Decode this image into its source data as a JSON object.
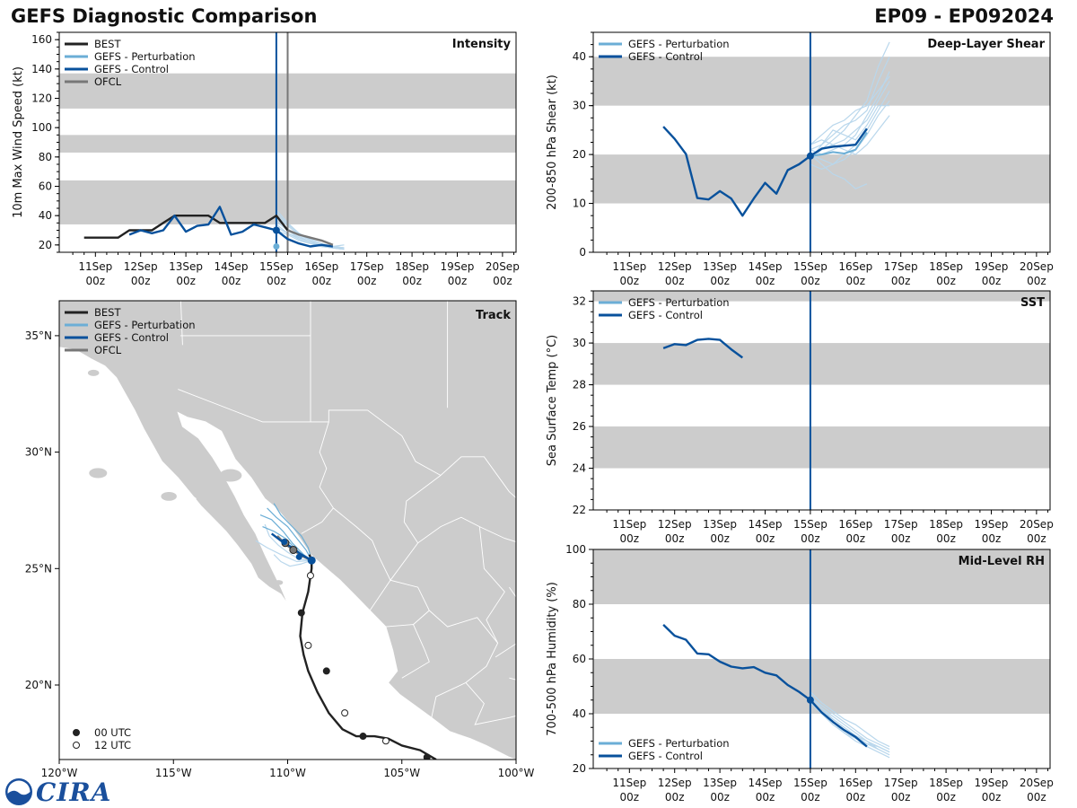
{
  "header": {
    "title_left": "GEFS Diagnostic Comparison",
    "title_right": "EP09 - EP092024"
  },
  "logo": {
    "text": "CIRA"
  },
  "colors": {
    "best": "#222222",
    "pert": "#6baed6",
    "pert_faint": "#b9d7ec",
    "control": "#08519c",
    "ofcl": "#777777",
    "band": "#cccccc",
    "land": "#cccccc"
  },
  "time_axis": {
    "ticks": [
      "11Sep\n00z",
      "12Sep\n00z",
      "13Sep\n00z",
      "14Sep\n00z",
      "15Sep\n00z",
      "16Sep\n00z",
      "17Sep\n00z",
      "18Sep\n00z",
      "19Sep\n00z",
      "20Sep\n00z"
    ],
    "tick_days": [
      1,
      2,
      3,
      4,
      5,
      6,
      7,
      8,
      9,
      10
    ],
    "range": [
      0.2,
      10.3
    ],
    "init_day": 5.0
  },
  "chart_data": [
    {
      "id": "intensity",
      "type": "line",
      "title": "Intensity",
      "ylabel": "10m Max Wind Speed (kt)",
      "ylim": [
        15,
        165
      ],
      "yticks": [
        20,
        40,
        60,
        80,
        100,
        120,
        140,
        160
      ],
      "bands": [
        [
          34,
          64
        ],
        [
          83,
          95
        ],
        [
          113,
          137
        ]
      ],
      "legend": [
        "BEST",
        "GEFS - Perturbation",
        "GEFS - Control",
        "OFCL"
      ],
      "vlines": [
        {
          "x": 5.0,
          "color": "control"
        },
        {
          "x": 5.25,
          "color": "ofcl"
        }
      ],
      "series": [
        {
          "name": "BEST",
          "color": "best",
          "x": [
            0.75,
            1.0,
            1.25,
            1.5,
            1.75,
            2.0,
            2.25,
            2.5,
            2.75,
            3.0,
            3.25,
            3.5,
            3.75,
            4.0,
            4.25,
            4.5,
            4.75,
            5.0,
            5.25
          ],
          "y": [
            25,
            25,
            25,
            25,
            30,
            30,
            30,
            35,
            40,
            40,
            40,
            40,
            35,
            35,
            35,
            35,
            35,
            40,
            30
          ]
        },
        {
          "name": "GEFS - Control",
          "color": "control",
          "x": [
            1.75,
            2.0,
            2.25,
            2.5,
            2.75,
            3.0,
            3.25,
            3.5,
            3.75,
            4.0,
            4.25,
            4.5,
            4.75,
            5.0,
            5.25,
            5.5,
            5.75,
            6.0,
            6.25
          ],
          "y": [
            27,
            30,
            28,
            30,
            40,
            29,
            33,
            34,
            46,
            27,
            29,
            34,
            32,
            30,
            24,
            21,
            19,
            20,
            19
          ]
        },
        {
          "name": "OFCL",
          "color": "ofcl",
          "x": [
            5.25,
            5.5,
            5.75,
            6.0,
            6.25
          ],
          "y": [
            30,
            27,
            25,
            23,
            20
          ]
        }
      ],
      "ensemble": {
        "x": [
          5.0,
          5.25,
          5.5,
          5.75,
          6.0,
          6.25,
          6.5
        ],
        "members": [
          [
            40,
            33,
            27,
            23,
            20,
            18,
            17
          ],
          [
            38,
            31,
            26,
            22,
            20,
            19,
            18
          ],
          [
            36,
            30,
            25,
            22,
            19,
            18,
            17
          ],
          [
            42,
            34,
            28,
            24,
            21,
            19,
            18
          ],
          [
            34,
            28,
            24,
            21,
            19,
            18,
            17
          ],
          [
            30,
            27,
            23,
            21,
            19,
            18,
            18
          ],
          [
            44,
            35,
            28,
            23,
            20,
            19,
            20
          ],
          [
            32,
            28,
            25,
            22,
            20,
            19,
            18
          ]
        ],
        "pert_markers": [
          {
            "x": 5.0,
            "y": 19
          }
        ]
      }
    },
    {
      "id": "shear",
      "type": "line",
      "title": "Deep-Layer Shear",
      "ylabel": "200-850 hPa Shear (kt)",
      "ylim": [
        0,
        45
      ],
      "yticks": [
        0,
        10,
        20,
        30,
        40
      ],
      "bands": [
        [
          10,
          20
        ],
        [
          30,
          40
        ]
      ],
      "legend": [
        "GEFS - Perturbation",
        "GEFS - Control"
      ],
      "vlines": [
        {
          "x": 5.0,
          "color": "control"
        }
      ],
      "series": [
        {
          "name": "GEFS - Control",
          "color": "control",
          "x": [
            1.75,
            2.0,
            2.25,
            2.5,
            2.75,
            3.0,
            3.25,
            3.5,
            3.75,
            4.0,
            4.25,
            4.5,
            4.75,
            5.0,
            5.25,
            5.5,
            5.75,
            6.0,
            6.25
          ],
          "y": [
            25.7,
            23.2,
            20.1,
            11.1,
            10.8,
            12.5,
            11.0,
            7.5,
            11.0,
            14.2,
            12.0,
            16.8,
            18.0,
            19.7,
            21.2,
            21.6,
            21.8,
            22.0,
            25.3
          ]
        },
        {
          "name": "GEFS - Perturbation",
          "color": "pert",
          "x": [
            5.0,
            5.25,
            5.5,
            5.75,
            6.0,
            6.25
          ],
          "y": [
            19.7,
            20.0,
            20.5,
            20.2,
            21.0,
            24.5
          ]
        }
      ],
      "ensemble": {
        "x": [
          5.0,
          5.25,
          5.5,
          5.75,
          6.0,
          6.25,
          6.5,
          6.75
        ],
        "members": [
          [
            20,
            18,
            16,
            15,
            13,
            14,
            null,
            null
          ],
          [
            21,
            22,
            24,
            26,
            27,
            29,
            35,
            40
          ],
          [
            19,
            21,
            23,
            25,
            28,
            31,
            38,
            43
          ],
          [
            20,
            19,
            18,
            19,
            21,
            24,
            28,
            31
          ],
          [
            22,
            23,
            22,
            23,
            25,
            27,
            31,
            35
          ],
          [
            18,
            17,
            18,
            20,
            22,
            25,
            29,
            33
          ],
          [
            21,
            20,
            21,
            22,
            24,
            28,
            32,
            37
          ],
          [
            19,
            22,
            25,
            24,
            23,
            26,
            30,
            30
          ],
          [
            20,
            21,
            22,
            21,
            20,
            22,
            25,
            28
          ],
          [
            22,
            24,
            26,
            27,
            29,
            30,
            33,
            36
          ]
        ],
        "pert_markers": []
      }
    },
    {
      "id": "sst",
      "type": "line",
      "title": "SST",
      "ylabel": "Sea Surface Temp (°C)",
      "ylim": [
        22,
        32.5
      ],
      "yticks": [
        22,
        24,
        26,
        28,
        30,
        32
      ],
      "bands": [
        [
          24,
          26
        ],
        [
          28,
          30
        ],
        [
          32,
          32.5
        ]
      ],
      "legend": [
        "GEFS - Perturbation",
        "GEFS - Control"
      ],
      "vlines": [
        {
          "x": 5.0,
          "color": "control"
        }
      ],
      "series": [
        {
          "name": "GEFS - Control",
          "color": "control",
          "x": [
            1.75,
            2.0,
            2.25,
            2.5,
            2.75,
            3.0,
            3.25,
            3.5
          ],
          "y": [
            29.75,
            29.95,
            29.9,
            30.15,
            30.2,
            30.15,
            29.7,
            29.3
          ]
        }
      ],
      "ensemble": {
        "x": [],
        "members": [],
        "pert_markers": []
      }
    },
    {
      "id": "rh",
      "type": "line",
      "title": "Mid-Level RH",
      "ylabel": "700-500 hPa Humidity (%)",
      "ylim": [
        20,
        100
      ],
      "yticks": [
        20,
        40,
        60,
        80,
        100
      ],
      "bands": [
        [
          40,
          60
        ],
        [
          80,
          100
        ]
      ],
      "legend": [
        "GEFS - Perturbation",
        "GEFS - Control"
      ],
      "legend_pos": "bottom-left",
      "vlines": [
        {
          "x": 5.0,
          "color": "control"
        }
      ],
      "series": [
        {
          "name": "GEFS - Control",
          "color": "control",
          "x": [
            1.75,
            2.0,
            2.25,
            2.5,
            2.75,
            3.0,
            3.25,
            3.5,
            3.75,
            4.0,
            4.25,
            4.5,
            4.75,
            5.0,
            5.25,
            5.5,
            5.75,
            6.0,
            6.25
          ],
          "y": [
            72.5,
            68.5,
            67.0,
            62.0,
            61.7,
            59.0,
            57.2,
            56.6,
            57.0,
            55.0,
            54.0,
            50.5,
            48.0,
            45.0,
            40.5,
            37.0,
            34.0,
            31.5,
            28.0
          ]
        }
      ],
      "ensemble": {
        "x": [
          5.0,
          5.25,
          5.5,
          5.75,
          6.0,
          6.25,
          6.5,
          6.75
        ],
        "members": [
          [
            47,
            42,
            38,
            35,
            32,
            29,
            27,
            25
          ],
          [
            46,
            43,
            40,
            37,
            34,
            31,
            29,
            27
          ],
          [
            45,
            41,
            37,
            33,
            30,
            28,
            26,
            24
          ],
          [
            48,
            44,
            41,
            38,
            36,
            33,
            30,
            28
          ],
          [
            44,
            40,
            36,
            33,
            31,
            29,
            28,
            26
          ],
          [
            46,
            42,
            39,
            36,
            33,
            30,
            28,
            26
          ],
          [
            45,
            41,
            38,
            35,
            32,
            30,
            27,
            null
          ]
        ],
        "pert_markers": []
      }
    },
    {
      "id": "track",
      "type": "scatter",
      "title": "Track",
      "xlim": [
        -120,
        -100
      ],
      "ylim": [
        16.8,
        36.5
      ],
      "xticks": [
        -120,
        -115,
        -110,
        -105,
        -100
      ],
      "xtick_labels": [
        "120°W",
        "115°W",
        "110°W",
        "105°W",
        "100°W"
      ],
      "yticks": [
        20,
        25,
        30,
        35
      ],
      "ytick_labels": [
        "20°N",
        "25°N",
        "30°N",
        "35°N"
      ],
      "legend": [
        "BEST",
        "GEFS - Perturbation",
        "GEFS - Control",
        "OFCL"
      ],
      "marker_legend": [
        "00 UTC",
        "12 UTC"
      ],
      "best": {
        "lon": [
          -103.5,
          -104.2,
          -105.0,
          -105.6,
          -106.2,
          -106.6,
          -107.0,
          -107.6,
          -108.2,
          -108.7,
          -109.1,
          -109.3,
          -109.45,
          -109.35,
          -109.1,
          -109.0,
          -108.95,
          -108.95,
          -109.05
        ],
        "lat": [
          16.8,
          17.2,
          17.4,
          17.7,
          17.8,
          17.8,
          17.8,
          18.1,
          18.8,
          19.7,
          20.6,
          21.3,
          22.1,
          23.1,
          24.0,
          24.7,
          25.0,
          25.35,
          25.6
        ],
        "marks": [
          {
            "lon": -103.9,
            "lat": 16.9,
            "fill": "filled"
          },
          {
            "lon": -105.7,
            "lat": 17.6,
            "fill": "open"
          },
          {
            "lon": -106.7,
            "lat": 17.8,
            "fill": "filled"
          },
          {
            "lon": -107.5,
            "lat": 18.8,
            "fill": "open"
          },
          {
            "lon": -108.3,
            "lat": 20.6,
            "fill": "filled"
          },
          {
            "lon": -109.1,
            "lat": 21.7,
            "fill": "open"
          },
          {
            "lon": -109.4,
            "lat": 23.1,
            "fill": "filled"
          },
          {
            "lon": -109.0,
            "lat": 24.7,
            "fill": "open"
          },
          {
            "lon": -108.95,
            "lat": 25.35,
            "fill": "filled"
          }
        ]
      },
      "control": {
        "lon": [
          -108.95,
          -109.4,
          -109.8,
          -110.3,
          -110.7
        ],
        "lat": [
          25.35,
          25.6,
          25.9,
          26.2,
          26.5
        ]
      },
      "ofcl": {
        "lon": [
          -108.95,
          -109.4,
          -109.75,
          -110.1,
          -110.45
        ],
        "lat": [
          25.35,
          25.55,
          25.8,
          26.05,
          26.4
        ]
      },
      "ofcl_marks": [
        {
          "lon": -109.75,
          "lat": 25.8
        },
        {
          "lon": -110.1,
          "lat": 26.1
        }
      ],
      "control_marks": [
        {
          "lon": -110.15,
          "lat": 26.15
        },
        {
          "lon": -109.5,
          "lat": 25.5
        }
      ],
      "ensemble": [
        {
          "lon": [
            -108.95,
            -109.3,
            -109.8,
            -110.2,
            -110.7,
            -111.2
          ],
          "lat": [
            25.35,
            25.6,
            26.1,
            26.6,
            27.1,
            27.3
          ]
        },
        {
          "lon": [
            -108.95,
            -109.5,
            -110.0,
            -110.4,
            -110.8,
            -111.0
          ],
          "lat": [
            25.35,
            25.4,
            25.7,
            26.0,
            26.4,
            26.9
          ]
        },
        {
          "lon": [
            -108.95,
            -109.2,
            -109.6,
            -110.0,
            -110.5,
            -110.9
          ],
          "lat": [
            25.35,
            25.8,
            26.3,
            26.8,
            27.2,
            27.6
          ]
        },
        {
          "lon": [
            -108.95,
            -109.6,
            -110.3,
            -110.9,
            -111.4
          ],
          "lat": [
            25.35,
            25.3,
            25.6,
            25.9,
            26.2
          ]
        },
        {
          "lon": [
            -108.95,
            -109.1,
            -109.4,
            -109.9,
            -110.3,
            -110.6
          ],
          "lat": [
            25.35,
            25.9,
            26.4,
            26.9,
            27.3,
            27.8
          ]
        },
        {
          "lon": [
            -108.95,
            -109.4,
            -109.9,
            -110.3,
            -110.6
          ],
          "lat": [
            25.35,
            25.2,
            25.1,
            25.3,
            25.6
          ]
        },
        {
          "lon": [
            -108.95,
            -109.3,
            -109.7,
            -110.1,
            -110.6,
            -111.1
          ],
          "lat": [
            25.35,
            25.5,
            25.9,
            26.3,
            26.6,
            26.8
          ]
        }
      ]
    }
  ]
}
